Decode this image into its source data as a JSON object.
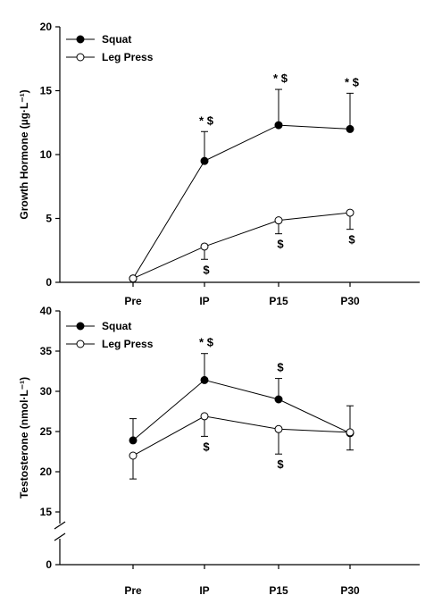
{
  "chart_data": [
    {
      "type": "line",
      "title": "",
      "xlabel": "",
      "ylabel": "Growth Hormone (µg·L⁻¹)",
      "categories": [
        "Pre",
        "IP",
        "P15",
        "P30"
      ],
      "ylim": [
        0,
        20
      ],
      "yticks": [
        "0",
        "5",
        "10",
        "15",
        "20"
      ],
      "grid": false,
      "legend": "top-left",
      "series": [
        {
          "name": "Squat",
          "marker": "filled",
          "values": [
            0.3,
            9.5,
            12.3,
            12.0
          ],
          "error_up": [
            0,
            2.3,
            2.8,
            2.8
          ],
          "annotations": [
            "",
            "* $",
            "* $",
            "* $"
          ]
        },
        {
          "name": "Leg Press",
          "marker": "open",
          "values": [
            0.3,
            2.8,
            4.85,
            5.45
          ],
          "error_down": [
            0,
            1.0,
            1.05,
            1.3
          ],
          "annotations": [
            "",
            "$",
            "$",
            "$"
          ]
        }
      ]
    },
    {
      "type": "line",
      "title": "",
      "xlabel": "",
      "ylabel": "Testosterone (nmol·L⁻¹)",
      "categories": [
        "Pre",
        "IP",
        "P15",
        "P30"
      ],
      "ylim": [
        0,
        40
      ],
      "axis_break": [
        0,
        15
      ],
      "yticks": [
        "0",
        "15",
        "20",
        "25",
        "30",
        "35",
        "40"
      ],
      "grid": false,
      "legend": "top-left",
      "series": [
        {
          "name": "Squat",
          "marker": "filled",
          "values": [
            23.9,
            31.4,
            29.0,
            24.8
          ],
          "error_up": [
            2.7,
            3.3,
            2.6,
            3.4
          ],
          "annotations": [
            "",
            "* $",
            "$",
            ""
          ]
        },
        {
          "name": "Leg Press",
          "marker": "open",
          "values": [
            22.0,
            26.9,
            25.3,
            24.9
          ],
          "error_down": [
            2.9,
            2.5,
            3.1,
            2.2
          ],
          "annotations": [
            "",
            "$",
            "$",
            ""
          ]
        }
      ]
    }
  ]
}
